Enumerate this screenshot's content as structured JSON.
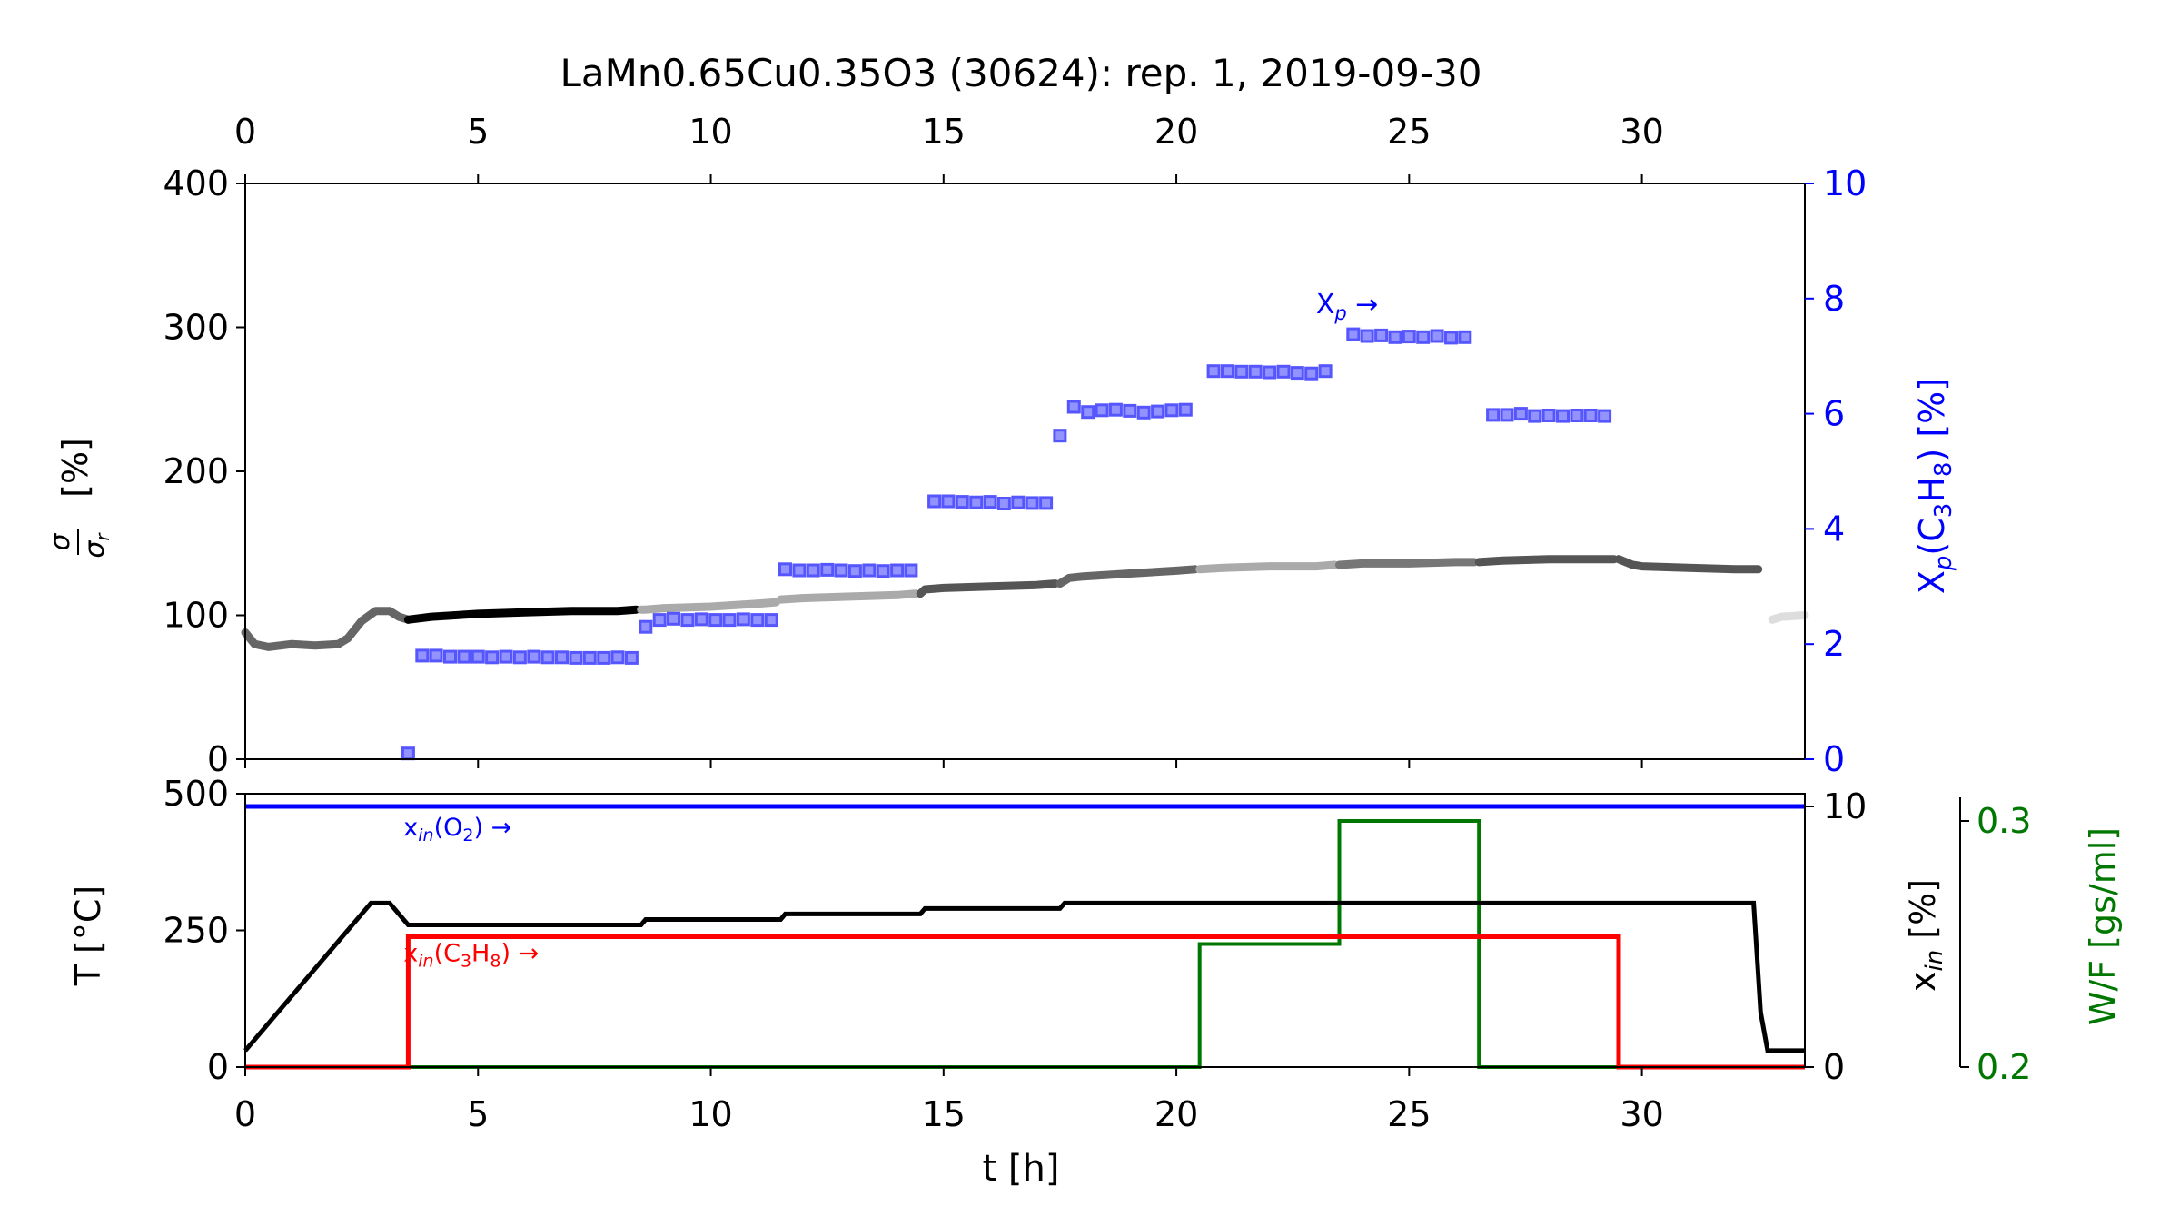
{
  "chart_data": [
    {
      "type": "line",
      "panel": "top",
      "title": "LaMn0.65Cu0.35O3 (30624): rep. 1, 2019-09-30",
      "xlim": [
        0,
        33.5
      ],
      "xticks": [
        0,
        5,
        10,
        15,
        20,
        25,
        30
      ],
      "xtick_labels": [
        "0",
        "5",
        "10",
        "15",
        "20",
        "25",
        "30"
      ],
      "ylabel_frac_num": "σ",
      "ylabel_frac_den": "σ",
      "ylabel_frac_den_sub": "r",
      "ylabel_unit": "[%]",
      "ylim": [
        0,
        400
      ],
      "yticks": [
        0,
        100,
        200,
        300,
        400
      ],
      "ytick_labels": [
        "0",
        "100",
        "200",
        "300",
        "400"
      ],
      "y2label_main": "X",
      "y2label_sub1": "p",
      "y2label_mid": "(C",
      "y2label_sub2": "3",
      "y2label_h": "H",
      "y2label_sub3": "8",
      "y2label_end": ")  [%]",
      "y2lim": [
        0,
        10
      ],
      "y2ticks": [
        0,
        2,
        4,
        6,
        8,
        10
      ],
      "y2tick_labels": [
        "0",
        "2",
        "4",
        "6",
        "8",
        "10"
      ],
      "annotation": {
        "main": "X",
        "sub": "p",
        "arrow": " →",
        "x": 23.0,
        "y": 8.0
      },
      "conductivity_segments": [
        {
          "color": "#666666",
          "x": [
            0,
            0.2,
            0.5,
            1,
            1.5,
            2,
            2.2,
            2.5,
            2.8,
            3.1,
            3.3,
            3.5
          ],
          "y": [
            88,
            80,
            78,
            80,
            79,
            80,
            84,
            96,
            103,
            103,
            99,
            97
          ]
        },
        {
          "color": "#000000",
          "x": [
            3.5,
            4,
            5,
            6,
            7,
            8,
            8.4
          ],
          "y": [
            97,
            99,
            101,
            102,
            103,
            103,
            104
          ]
        },
        {
          "color": "#aaaaaa",
          "x": [
            8.5,
            8.6,
            9,
            10,
            11,
            11.4
          ],
          "y": [
            104,
            104,
            105,
            106,
            108,
            109
          ]
        },
        {
          "color": "#aaaaaa",
          "x": [
            11.5,
            12,
            13,
            14,
            14.4
          ],
          "y": [
            111,
            112,
            113,
            114,
            115
          ]
        },
        {
          "color": "#555555",
          "x": [
            14.5,
            14.6,
            15,
            16,
            17,
            17.4
          ],
          "y": [
            115,
            118,
            119,
            120,
            121,
            122
          ]
        },
        {
          "color": "#666666",
          "x": [
            17.5,
            17.7,
            18,
            19,
            20,
            20.4
          ],
          "y": [
            122,
            126,
            127,
            129,
            131,
            132
          ]
        },
        {
          "color": "#aaaaaa",
          "x": [
            20.5,
            21,
            22,
            23,
            23.4
          ],
          "y": [
            132,
            133,
            134,
            134,
            135
          ]
        },
        {
          "color": "#777777",
          "x": [
            23.5,
            24,
            25,
            26,
            26.4
          ],
          "y": [
            135,
            136,
            136,
            137,
            137
          ]
        },
        {
          "color": "#555555",
          "x": [
            26.5,
            27,
            28,
            29,
            29.4
          ],
          "y": [
            137,
            138,
            139,
            139,
            139
          ]
        },
        {
          "color": "#555555",
          "x": [
            29.5,
            29.8,
            30,
            31,
            32,
            32.5
          ],
          "y": [
            139,
            135,
            134,
            133,
            132,
            132
          ]
        },
        {
          "color": "#dddddd",
          "x": [
            32.8,
            33,
            33.5
          ],
          "y": [
            97,
            99,
            100
          ]
        }
      ],
      "series": [
        {
          "name": "X_p(C3H8)",
          "color": "#4444ff",
          "marker": "square",
          "x": [
            3.5,
            3.8,
            4.1,
            4.4,
            4.7,
            5.0,
            5.3,
            5.6,
            5.9,
            6.2,
            6.5,
            6.8,
            7.1,
            7.4,
            7.7,
            8.0,
            8.3,
            8.6,
            8.9,
            9.2,
            9.5,
            9.8,
            10.1,
            10.4,
            10.7,
            11.0,
            11.3,
            11.6,
            11.9,
            12.2,
            12.5,
            12.8,
            13.1,
            13.4,
            13.7,
            14.0,
            14.3,
            14.8,
            15.1,
            15.4,
            15.7,
            16.0,
            16.3,
            16.6,
            16.9,
            17.2,
            17.5,
            17.8,
            18.1,
            18.4,
            18.7,
            19.0,
            19.3,
            19.6,
            19.9,
            20.2,
            20.8,
            21.1,
            21.4,
            21.7,
            22.0,
            22.3,
            22.6,
            22.9,
            23.2,
            23.8,
            24.1,
            24.4,
            24.7,
            25.0,
            25.3,
            25.6,
            25.9,
            26.2,
            26.8,
            27.1,
            27.4,
            27.7,
            28.0,
            28.3,
            28.6,
            28.9,
            29.2
          ],
          "values": [
            0.1,
            1.8,
            1.8,
            1.78,
            1.78,
            1.78,
            1.77,
            1.78,
            1.77,
            1.78,
            1.77,
            1.77,
            1.76,
            1.76,
            1.76,
            1.77,
            1.76,
            2.3,
            2.42,
            2.44,
            2.42,
            2.43,
            2.42,
            2.42,
            2.43,
            2.42,
            2.42,
            3.3,
            3.28,
            3.28,
            3.29,
            3.28,
            3.27,
            3.28,
            3.27,
            3.28,
            3.28,
            4.48,
            4.48,
            4.47,
            4.46,
            4.47,
            4.44,
            4.46,
            4.45,
            4.45,
            5.62,
            6.12,
            6.03,
            6.06,
            6.07,
            6.05,
            6.02,
            6.04,
            6.06,
            6.07,
            6.74,
            6.74,
            6.73,
            6.73,
            6.72,
            6.73,
            6.71,
            6.7,
            6.74,
            7.38,
            7.35,
            7.36,
            7.33,
            7.34,
            7.33,
            7.35,
            7.32,
            7.33,
            5.98,
            5.98,
            6.0,
            5.96,
            5.97,
            5.96,
            5.97,
            5.97,
            5.96
          ]
        }
      ]
    },
    {
      "type": "line",
      "panel": "bottom",
      "xlabel": "t [h]",
      "xlim": [
        0,
        33.5
      ],
      "xticks": [
        0,
        5,
        10,
        15,
        20,
        25,
        30
      ],
      "xtick_labels": [
        "0",
        "5",
        "10",
        "15",
        "20",
        "25",
        "30"
      ],
      "ylabel": "T [°C]",
      "ylim": [
        0,
        500
      ],
      "yticks": [
        0,
        250,
        500
      ],
      "ytick_labels": [
        "0",
        "250",
        "500"
      ],
      "y2label_main": "x",
      "y2label_sub": "in",
      "y2label_end": " [%]",
      "y2lim": [
        0,
        10
      ],
      "y2ticks": [
        0,
        10
      ],
      "y2tick_labels": [
        "0",
        "10"
      ],
      "y3label": "W/F [gs/ml]",
      "y3lim": [
        0.2,
        0.3
      ],
      "y3ticks": [
        0.2,
        0.3
      ],
      "y3tick_labels": [
        "0.2",
        "0.3"
      ],
      "annotations": [
        {
          "main": "x",
          "sub": "in",
          "rest": "(O",
          "sub2": "2",
          "end": ")  →",
          "color": "#0000ff",
          "x": 3.4,
          "y": 440
        },
        {
          "main": "x",
          "sub": "in",
          "rest": "(C",
          "sub2": "3",
          "mid": "H",
          "sub3": "8",
          "end": ")  →",
          "color": "#ff0000",
          "x": 3.4,
          "y": 210
        }
      ],
      "series": [
        {
          "name": "T",
          "axis": "T",
          "color": "#000000",
          "x": [
            0,
            2.7,
            3.1,
            3.5,
            8.5,
            8.6,
            11.5,
            11.6,
            14.5,
            14.6,
            17.5,
            17.6,
            32.4,
            32.55,
            32.7,
            33.5
          ],
          "values": [
            30,
            300,
            300,
            260,
            260,
            270,
            270,
            280,
            280,
            290,
            290,
            300,
            300,
            100,
            30,
            30
          ]
        },
        {
          "name": "x_in(O2)",
          "axis": "x_in",
          "color": "#0000ff",
          "x": [
            0,
            33.5
          ],
          "values": [
            10,
            10
          ]
        },
        {
          "name": "x_in(C3H8)",
          "axis": "x_in",
          "color": "#ff0000",
          "x": [
            0,
            3.5,
            3.5,
            29.5,
            29.5,
            33.5
          ],
          "values": [
            0,
            0,
            5,
            5,
            0,
            0
          ]
        },
        {
          "name": "W/F",
          "axis": "W/F",
          "color": "#007700",
          "x": [
            0,
            20.5,
            20.5,
            23.5,
            23.5,
            26.5,
            26.5,
            33.5
          ],
          "values": [
            0.2,
            0.2,
            0.25,
            0.25,
            0.3,
            0.3,
            0.2,
            0.2
          ]
        }
      ]
    }
  ]
}
